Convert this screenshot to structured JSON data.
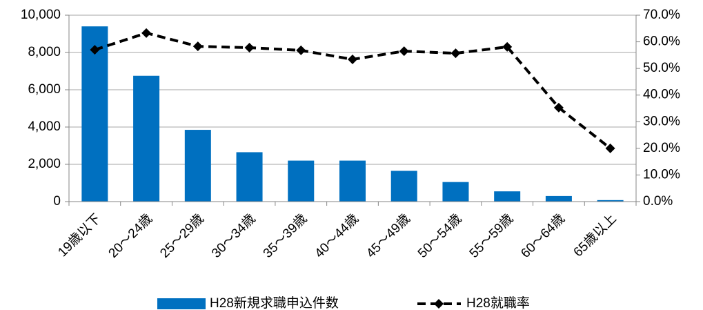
{
  "chart_data": {
    "type": "bar_line",
    "categories": [
      "19歳以下",
      "20～24歳",
      "25～29歳",
      "30～34歳",
      "35～39歳",
      "40～44歳",
      "45～49歳",
      "50～54歳",
      "55～59歳",
      "60～64歳",
      "65歳以上"
    ],
    "series": [
      {
        "name": "H28新規求職申込件数",
        "type": "bar",
        "color": "#0070c0",
        "values": [
          9400,
          6750,
          3850,
          2650,
          2200,
          2200,
          1650,
          1050,
          550,
          300,
          80
        ]
      },
      {
        "name": "H28就職率",
        "type": "line",
        "axis": "y2",
        "color": "#000000",
        "values": [
          57.0,
          63.3,
          58.3,
          57.8,
          56.8,
          53.4,
          56.5,
          55.7,
          58.1,
          35.3,
          20.0
        ]
      }
    ],
    "ylim": [
      0,
      10000
    ],
    "yticks": [
      0,
      {
        "value": 2000,
        "label": "2,000"
      },
      {
        "value": 4000,
        "label": "4,000"
      },
      {
        "value": 6000,
        "label": "6,000"
      },
      {
        "value": 8000,
        "label": "8,000"
      },
      {
        "value": 10000,
        "label": "10,000"
      }
    ],
    "y2lim": [
      0,
      70
    ],
    "y2ticks": [
      {
        "value": 0,
        "label": "0.0%"
      },
      {
        "value": 10,
        "label": "10.0%"
      },
      {
        "value": 20,
        "label": "20.0%"
      },
      {
        "value": 30,
        "label": "30.0%"
      },
      {
        "value": 40,
        "label": "40.0%"
      },
      {
        "value": 50,
        "label": "50.0%"
      },
      {
        "value": 60,
        "label": "60.0%"
      },
      {
        "value": 70,
        "label": "70.0%"
      }
    ],
    "grid": true,
    "legend": "bottom"
  }
}
